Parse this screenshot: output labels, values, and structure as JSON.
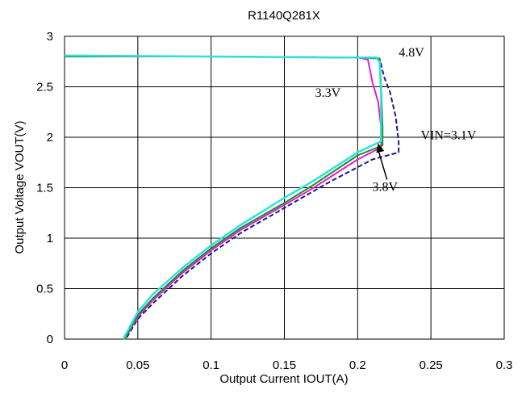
{
  "chart_data": {
    "type": "line",
    "title": "R1140Q281X",
    "xlabel": "Output Current IOUT(A)",
    "ylabel": "Output Voltage VOUT(V)",
    "xlim": [
      0,
      0.3
    ],
    "ylim": [
      0,
      3
    ],
    "xticks": [
      "0",
      "0.05",
      "0.1",
      "0.15",
      "0.2",
      "0.25",
      "0.3"
    ],
    "yticks": [
      "0",
      "0.5",
      "1",
      "1.5",
      "2",
      "2.5",
      "3"
    ],
    "grid": true,
    "series": [
      {
        "name": "VIN=3.1V",
        "color": "#1a1a8c",
        "dash": "6,3",
        "points": [
          [
            0.0,
            2.8
          ],
          [
            0.1,
            2.8
          ],
          [
            0.2,
            2.79
          ],
          [
            0.215,
            2.78
          ],
          [
            0.218,
            2.6
          ],
          [
            0.222,
            2.45
          ],
          [
            0.226,
            2.2
          ],
          [
            0.228,
            1.95
          ],
          [
            0.228,
            1.85
          ],
          [
            0.21,
            1.78
          ],
          [
            0.18,
            1.55
          ],
          [
            0.15,
            1.3
          ],
          [
            0.12,
            1.05
          ],
          [
            0.1,
            0.85
          ],
          [
            0.08,
            0.62
          ],
          [
            0.06,
            0.35
          ],
          [
            0.05,
            0.2
          ],
          [
            0.043,
            0.03
          ],
          [
            0.042,
            0.0
          ]
        ]
      },
      {
        "name": "3.3V",
        "color": "#e020d0",
        "dash": "",
        "points": [
          [
            0.0,
            2.8
          ],
          [
            0.1,
            2.8
          ],
          [
            0.2,
            2.79
          ],
          [
            0.207,
            2.77
          ],
          [
            0.21,
            2.55
          ],
          [
            0.214,
            2.35
          ],
          [
            0.216,
            2.1
          ],
          [
            0.216,
            1.9
          ],
          [
            0.2,
            1.78
          ],
          [
            0.17,
            1.5
          ],
          [
            0.15,
            1.33
          ],
          [
            0.12,
            1.08
          ],
          [
            0.1,
            0.88
          ],
          [
            0.08,
            0.65
          ],
          [
            0.06,
            0.38
          ],
          [
            0.05,
            0.22
          ],
          [
            0.041,
            0.0
          ]
        ]
      },
      {
        "name": "3.8V",
        "color": "#1f8a1f",
        "dash": "",
        "points": [
          [
            0.0,
            2.8
          ],
          [
            0.1,
            2.8
          ],
          [
            0.2,
            2.79
          ],
          [
            0.215,
            2.78
          ],
          [
            0.216,
            2.5
          ],
          [
            0.217,
            2.1
          ],
          [
            0.217,
            1.92
          ],
          [
            0.2,
            1.82
          ],
          [
            0.17,
            1.53
          ],
          [
            0.15,
            1.35
          ],
          [
            0.12,
            1.1
          ],
          [
            0.1,
            0.9
          ],
          [
            0.08,
            0.67
          ],
          [
            0.06,
            0.4
          ],
          [
            0.05,
            0.24
          ],
          [
            0.041,
            0.0
          ]
        ]
      },
      {
        "name": "4.8V",
        "color": "#2ee0e0",
        "dash": "",
        "points": [
          [
            0.0,
            2.81
          ],
          [
            0.1,
            2.8
          ],
          [
            0.19,
            2.79
          ],
          [
            0.213,
            2.79
          ],
          [
            0.215,
            2.74
          ],
          [
            0.216,
            2.4
          ],
          [
            0.216,
            2.1
          ],
          [
            0.216,
            1.96
          ],
          [
            0.2,
            1.85
          ],
          [
            0.17,
            1.57
          ],
          [
            0.15,
            1.4
          ],
          [
            0.12,
            1.13
          ],
          [
            0.1,
            0.93
          ],
          [
            0.08,
            0.7
          ],
          [
            0.06,
            0.44
          ],
          [
            0.05,
            0.27
          ],
          [
            0.04,
            0.0
          ]
        ]
      }
    ],
    "annotations": [
      {
        "text": "4.8V",
        "x": 0.228,
        "y": 2.8
      },
      {
        "text": "3.3V",
        "x": 0.171,
        "y": 2.4
      },
      {
        "text": "VIN=3.1V",
        "x": 0.243,
        "y": 1.98
      },
      {
        "text": "3.8V",
        "x": 0.21,
        "y": 1.47
      }
    ],
    "arrow": {
      "from": [
        0.22,
        1.58
      ],
      "to": [
        0.214,
        1.94
      ]
    }
  }
}
